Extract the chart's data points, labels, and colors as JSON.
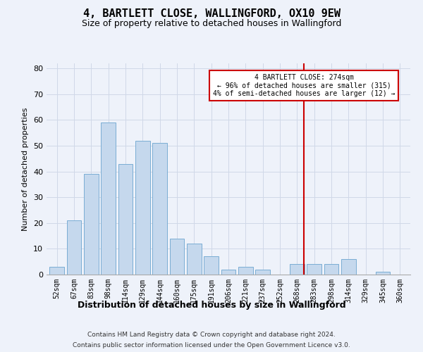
{
  "title": "4, BARTLETT CLOSE, WALLINGFORD, OX10 9EW",
  "subtitle": "Size of property relative to detached houses in Wallingford",
  "xlabel": "Distribution of detached houses by size in Wallingford",
  "ylabel": "Number of detached properties",
  "footer_line1": "Contains HM Land Registry data © Crown copyright and database right 2024.",
  "footer_line2": "Contains public sector information licensed under the Open Government Licence v3.0.",
  "bar_labels": [
    "52sqm",
    "67sqm",
    "83sqm",
    "98sqm",
    "114sqm",
    "129sqm",
    "144sqm",
    "160sqm",
    "175sqm",
    "191sqm",
    "206sqm",
    "221sqm",
    "237sqm",
    "252sqm",
    "268sqm",
    "283sqm",
    "298sqm",
    "314sqm",
    "329sqm",
    "345sqm",
    "360sqm"
  ],
  "bar_values": [
    3,
    21,
    39,
    59,
    43,
    52,
    51,
    14,
    12,
    7,
    2,
    3,
    2,
    0,
    4,
    4,
    4,
    6,
    0,
    1,
    0
  ],
  "bar_color": "#c5d8ed",
  "bar_edge_color": "#7aadd4",
  "annotation_text_line1": "4 BARTLETT CLOSE: 274sqm",
  "annotation_text_line2": "← 96% of detached houses are smaller (315)",
  "annotation_text_line3": "4% of semi-detached houses are larger (12) →",
  "annotation_box_color": "#ffffff",
  "annotation_box_edge": "#cc0000",
  "vline_color": "#cc0000",
  "ylim": [
    0,
    82
  ],
  "yticks": [
    0,
    10,
    20,
    30,
    40,
    50,
    60,
    70,
    80
  ],
  "bg_color": "#eef2fa",
  "grid_color": "#d0d8e8",
  "title_fontsize": 11,
  "subtitle_fontsize": 9,
  "xlabel_fontsize": 9,
  "ylabel_fontsize": 8,
  "tick_label_fontsize": 7,
  "annotation_fontsize": 7,
  "footer_fontsize": 6.5
}
